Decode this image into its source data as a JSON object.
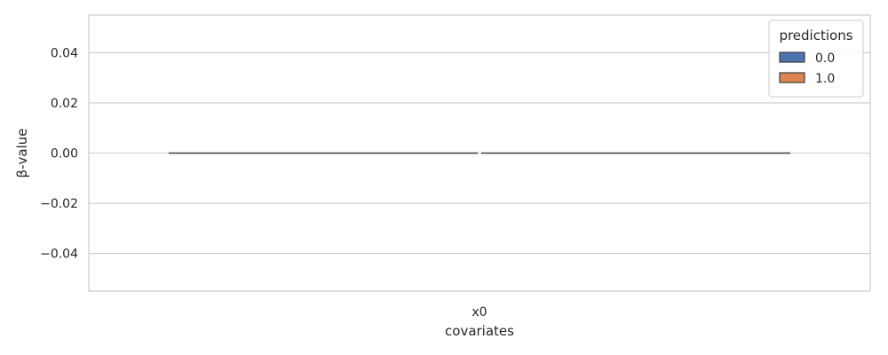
{
  "chart_data": {
    "type": "bar",
    "categories": [
      "x0"
    ],
    "series": [
      {
        "name": "0.0",
        "values": [
          0.0
        ],
        "color": "#4c72b0"
      },
      {
        "name": "1.0",
        "values": [
          0.0
        ],
        "color": "#dd8452"
      }
    ],
    "xlabel": "covariates",
    "ylabel": "β-value",
    "ylim": [
      -0.055,
      0.055
    ],
    "yticks": [
      -0.04,
      -0.02,
      0.0,
      0.02,
      0.04
    ],
    "ytick_labels": [
      "−0.04",
      "−0.02",
      "0.00",
      "0.02",
      "0.04"
    ],
    "grid": true,
    "legend": {
      "title": "predictions",
      "position": "top-right"
    },
    "colors": {
      "grid": "#cccccc",
      "frame": "#cccccc",
      "text": "#262626",
      "edge": "#3f3f3f"
    }
  }
}
